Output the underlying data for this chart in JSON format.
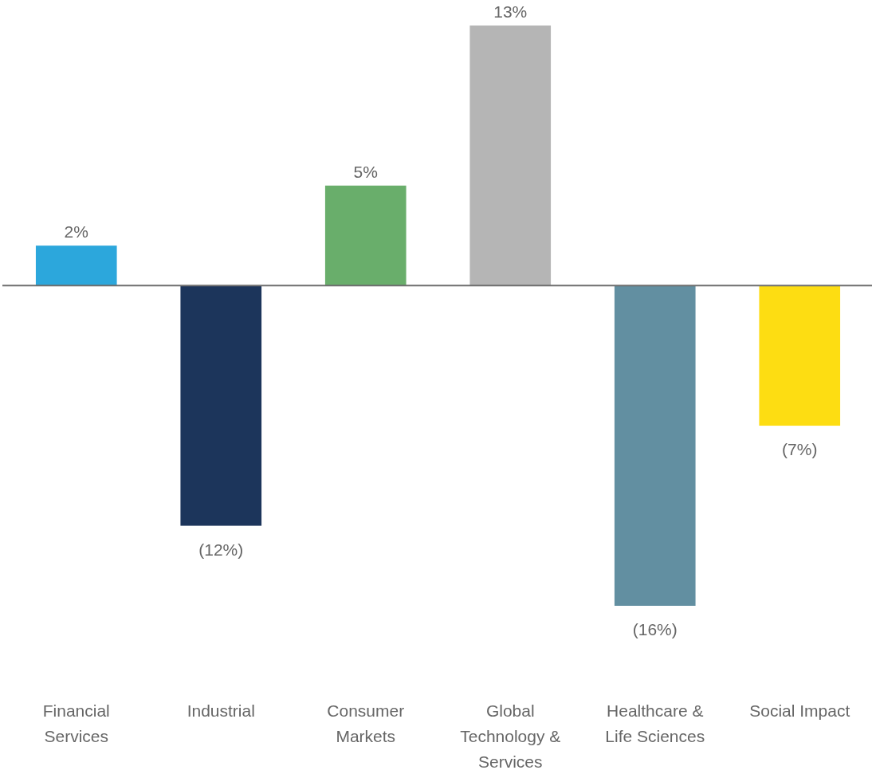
{
  "chart_data": {
    "type": "bar",
    "categories": [
      "Financial Services",
      "Industrial",
      "Consumer Markets",
      "Global Technology & Services",
      "Healthcare & Life Sciences",
      "Social Impact"
    ],
    "values": [
      2,
      -12,
      5,
      13,
      -16,
      -7
    ],
    "value_labels": [
      "2%",
      "(12%)",
      "5%",
      "13%",
      "(16%)",
      "(7%)"
    ],
    "colors": [
      "#2ca7dc",
      "#1c355b",
      "#69ae6b",
      "#b5b5b5",
      "#628fa1",
      "#fddd12"
    ]
  }
}
